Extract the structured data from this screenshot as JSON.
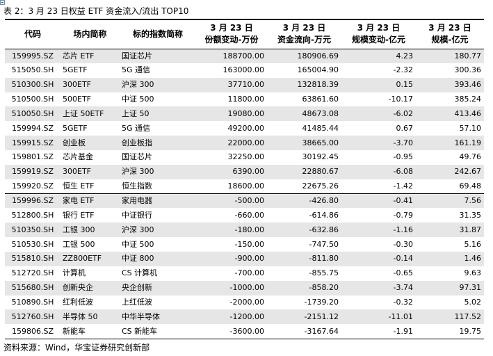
{
  "title": "表 2：3 月 23 日权益 ETF 资金流入/流出 TOP10",
  "headers": {
    "code": "代码",
    "name": "场内简称",
    "index": "标的指数简称",
    "share_change": {
      "line1": "3 月 23 日",
      "line2": "份额变动-万份"
    },
    "fund_flow": {
      "line1": "3 月 23 日",
      "line2": "资金流向-万元"
    },
    "scale_change": {
      "line1": "3 月 23 日",
      "line2": "规模变动-亿元"
    },
    "scale": {
      "line1": "3 月 23 日",
      "line2": "规模-亿元"
    }
  },
  "rows": [
    [
      "159995.SZ",
      "芯片 ETF",
      "国证芯片",
      "188700.00",
      "180906.69",
      "4.23",
      "180.77"
    ],
    [
      "515050.SH",
      "5GETF",
      "5G 通信",
      "163000.00",
      "165004.90",
      "-2.32",
      "300.36"
    ],
    [
      "510300.SH",
      "300ETF",
      "沪深 300",
      "37710.00",
      "132818.39",
      "0.15",
      "393.46"
    ],
    [
      "510500.SH",
      "500ETF",
      "中证 500",
      "11800.00",
      "63861.60",
      "-10.17",
      "385.24"
    ],
    [
      "510050.SH",
      "上证 50ETF",
      "上证 50",
      "19080.00",
      "48673.08",
      "-6.02",
      "413.46"
    ],
    [
      "159994.SZ",
      "5GETF",
      "5G 通信",
      "49200.00",
      "41485.44",
      "0.67",
      "57.10"
    ],
    [
      "159915.SZ",
      "创业板",
      "创业板指",
      "22000.00",
      "38665.00",
      "-3.70",
      "161.19"
    ],
    [
      "159801.SZ",
      "芯片基金",
      "国证芯片",
      "32250.00",
      "30192.45",
      "-0.95",
      "49.76"
    ],
    [
      "159919.SZ",
      "300ETF",
      "沪深 300",
      "6390.00",
      "22880.67",
      "-6.08",
      "242.67"
    ],
    [
      "159920.SZ",
      "恒生 ETF",
      "恒生指数",
      "18600.00",
      "22675.26",
      "-1.42",
      "69.48"
    ],
    [
      "159996.SZ",
      "家电 ETF",
      "家用电器",
      "-500.00",
      "-426.80",
      "-0.41",
      "7.56"
    ],
    [
      "512800.SH",
      "银行 ETF",
      "中证银行",
      "-660.00",
      "-614.86",
      "-0.79",
      "31.35"
    ],
    [
      "510350.SH",
      "工银 300",
      "沪深 300",
      "-180.00",
      "-632.86",
      "-1.16",
      "31.87"
    ],
    [
      "510530.SH",
      "工银 500",
      "中证 500",
      "-150.00",
      "-747.50",
      "-0.30",
      "5.16"
    ],
    [
      "515810.SH",
      "ZZ800ETF",
      "中证 800",
      "-900.00",
      "-811.80",
      "-0.14",
      "1.46"
    ],
    [
      "512720.SH",
      "计算机",
      "CS 计算机",
      "-700.00",
      "-855.75",
      "-0.65",
      "9.63"
    ],
    [
      "515680.SH",
      "创新央企",
      "央企创新",
      "-1000.00",
      "-858.20",
      "-3.74",
      "97.31"
    ],
    [
      "510890.SH",
      "红利低波",
      "上红低波",
      "-2000.00",
      "-1739.20",
      "-0.32",
      "5.02"
    ],
    [
      "512760.SH",
      "半导体 50",
      "中华半导体",
      "-1200.00",
      "-2151.12",
      "-11.01",
      "117.52"
    ],
    [
      "159806.SZ",
      "新能车",
      "CS 新能车",
      "-3600.00",
      "-3167.64",
      "-1.91",
      "19.75"
    ]
  ],
  "source": "资料来源：Wind，华宝证券研究创新部"
}
